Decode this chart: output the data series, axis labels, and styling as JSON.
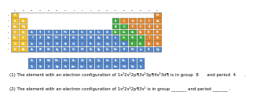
{
  "background": "#ffffff",
  "cell_colors": {
    "yellow": "#f0c030",
    "blue": "#5588cc",
    "green": "#44aa44",
    "orange": "#dd8833",
    "grey": "#cccccc"
  },
  "q1_line": "(1) The element with an electron configuration of 1s²2s²2p¶3s²3p¶4s²3d¶ is in group  8      and period  4      .",
  "q2_line": "(2) The element with an electron configuration of 1s²2s²2p¶3s¹ is in group _______ and period _______ .",
  "font_size_q": 4.0,
  "font_size_cell": 2.2,
  "table_border": "#888888"
}
